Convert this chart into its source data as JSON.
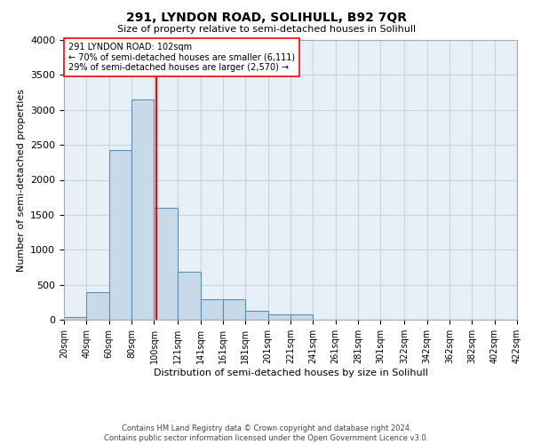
{
  "title1": "291, LYNDON ROAD, SOLIHULL, B92 7QR",
  "title2": "Size of property relative to semi-detached houses in Solihull",
  "xlabel": "Distribution of semi-detached houses by size in Solihull",
  "ylabel": "Number of semi-detached properties",
  "footer1": "Contains HM Land Registry data © Crown copyright and database right 2024.",
  "footer2": "Contains public sector information licensed under the Open Government Licence v3.0.",
  "annotation_title": "291 LYNDON ROAD: 102sqm",
  "annotation_line1": "← 70% of semi-detached houses are smaller (6,111)",
  "annotation_line2": "29% of semi-detached houses are larger (2,570) →",
  "property_size": 102,
  "bin_edges": [
    20,
    40,
    60,
    80,
    100,
    121,
    141,
    161,
    181,
    201,
    221,
    241,
    261,
    281,
    301,
    322,
    342,
    362,
    382,
    402,
    422
  ],
  "bin_labels": [
    "20sqm",
    "40sqm",
    "60sqm",
    "80sqm",
    "100sqm",
    "121sqm",
    "141sqm",
    "161sqm",
    "181sqm",
    "201sqm",
    "221sqm",
    "241sqm",
    "261sqm",
    "281sqm",
    "301sqm",
    "322sqm",
    "342sqm",
    "362sqm",
    "382sqm",
    "402sqm",
    "422sqm"
  ],
  "counts": [
    40,
    390,
    2430,
    3150,
    1600,
    680,
    290,
    290,
    130,
    75,
    70,
    0,
    0,
    0,
    0,
    0,
    0,
    0,
    0,
    0
  ],
  "bar_color": "#c8d9e8",
  "bar_edge_color": "#5b8db8",
  "vline_color": "red",
  "vline_x": 102,
  "ylim": [
    0,
    4000
  ],
  "yticks": [
    0,
    500,
    1000,
    1500,
    2000,
    2500,
    3000,
    3500,
    4000
  ],
  "grid_color": "#c8d4e0",
  "bg_color": "#e8f0f7",
  "annotation_box_color": "white",
  "annotation_box_edge": "red"
}
